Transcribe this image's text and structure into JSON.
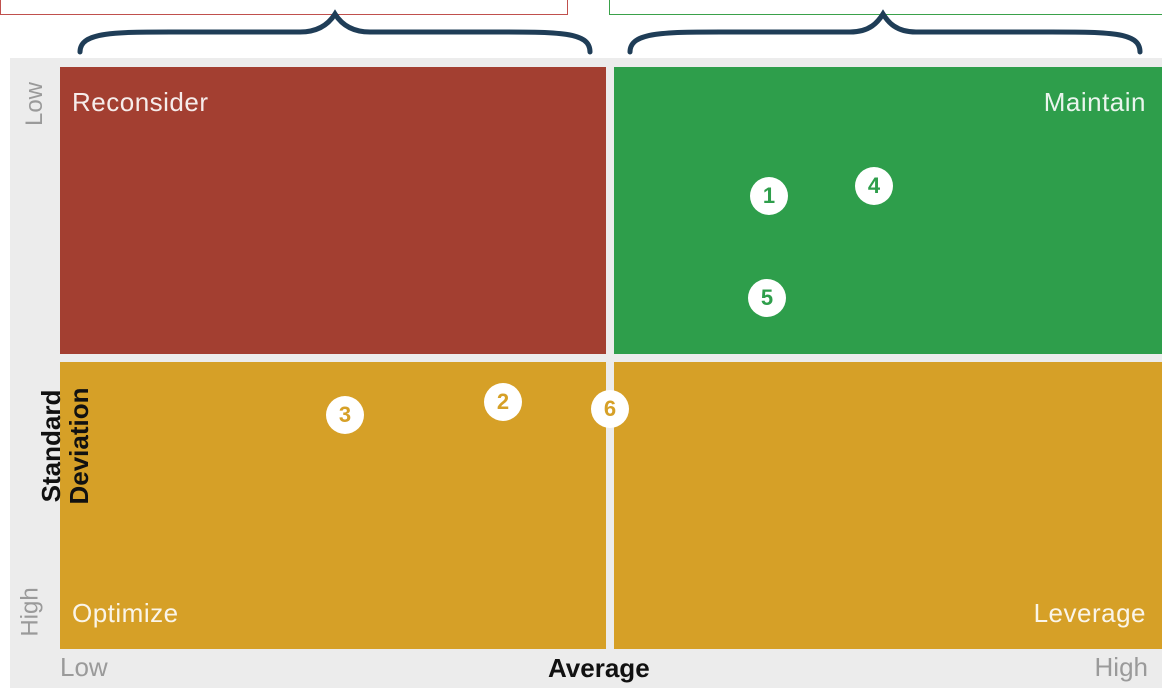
{
  "colors": {
    "reconsider": "#a33f31",
    "maintain": "#2e9e4b",
    "optimize": "#d6a027",
    "leverage": "#d6a027",
    "brace": "#1f3d57",
    "axis_text": "#9a9a9a"
  },
  "quadrants": {
    "reconsider": "Reconsider",
    "maintain": "Maintain",
    "optimize": "Optimize",
    "leverage": "Leverage"
  },
  "x_axis": {
    "title": "Average",
    "low": "Low",
    "high": "High"
  },
  "y_axis": {
    "title_line1": "Standard",
    "title_line2": "Deviation",
    "low": "Low",
    "high": "High"
  },
  "markers": {
    "m1": "1",
    "m2": "2",
    "m3": "3",
    "m4": "4",
    "m5": "5",
    "m6": "6"
  }
}
